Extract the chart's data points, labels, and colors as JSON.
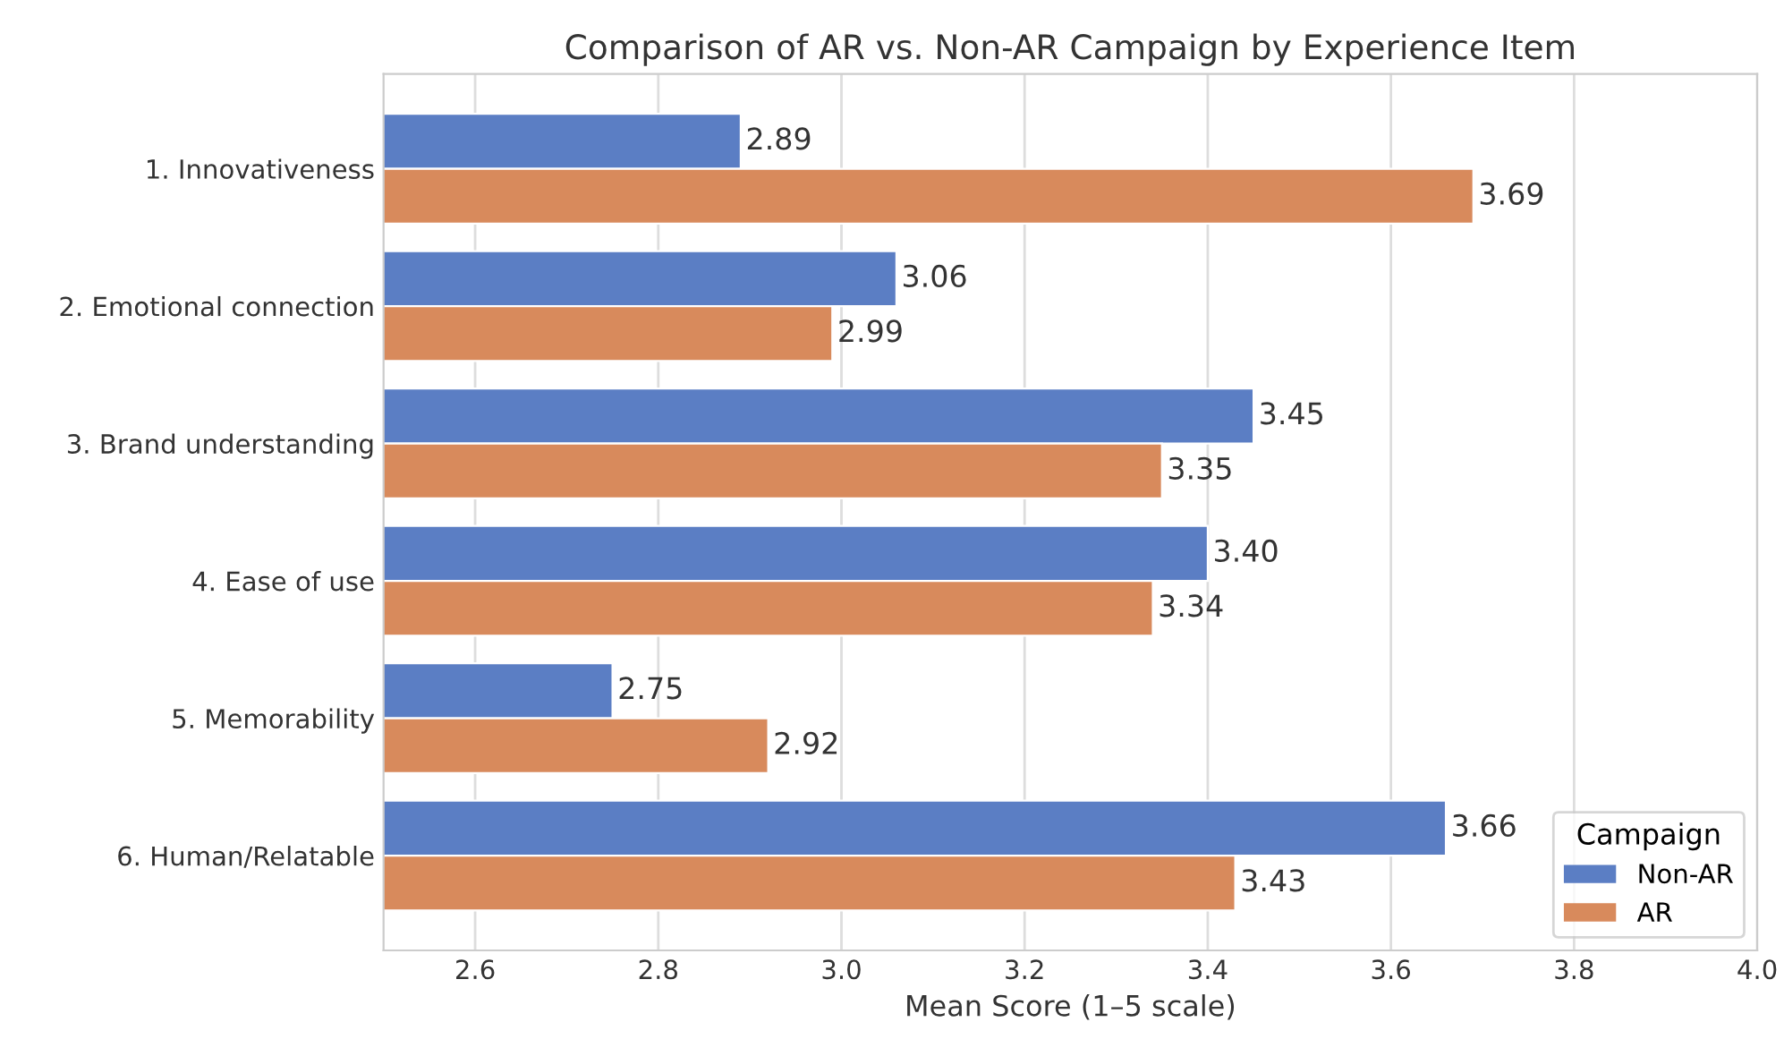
{
  "chart_data": {
    "type": "bar",
    "orientation": "horizontal",
    "title": "Comparison of AR vs. Non-AR Campaign by Experience Item",
    "xlabel": "Mean Score (1–5 scale)",
    "categories": [
      "1. Innovativeness",
      "2. Emotional connection",
      "3. Brand understanding",
      "4. Ease of use",
      "5. Memorability",
      "6. Human/Relatable"
    ],
    "series": [
      {
        "name": "Non-AR",
        "color": "#5b7ec4",
        "values": [
          2.89,
          3.06,
          3.45,
          3.4,
          2.75,
          3.66
        ],
        "value_labels": [
          "2.89",
          "3.06",
          "3.45",
          "3.40",
          "2.75",
          "3.66"
        ]
      },
      {
        "name": "AR",
        "color": "#d88a5c",
        "values": [
          3.69,
          2.99,
          3.35,
          3.34,
          2.92,
          3.43
        ],
        "value_labels": [
          "3.69",
          "2.99",
          "3.35",
          "3.34",
          "2.92",
          "3.43"
        ]
      }
    ],
    "xlim": [
      2.5,
      4.0
    ],
    "xticks": [
      {
        "value": 2.6,
        "label": "2.6"
      },
      {
        "value": 2.8,
        "label": "2.8"
      },
      {
        "value": 3.0,
        "label": "3.0"
      },
      {
        "value": 3.2,
        "label": "3.2"
      },
      {
        "value": 3.4,
        "label": "3.4"
      },
      {
        "value": 3.6,
        "label": "3.6"
      },
      {
        "value": 3.8,
        "label": "3.8"
      },
      {
        "value": 4.0,
        "label": "4.0"
      }
    ],
    "grid": "x",
    "legend": "lower right",
    "legend_title": "Campaign"
  }
}
